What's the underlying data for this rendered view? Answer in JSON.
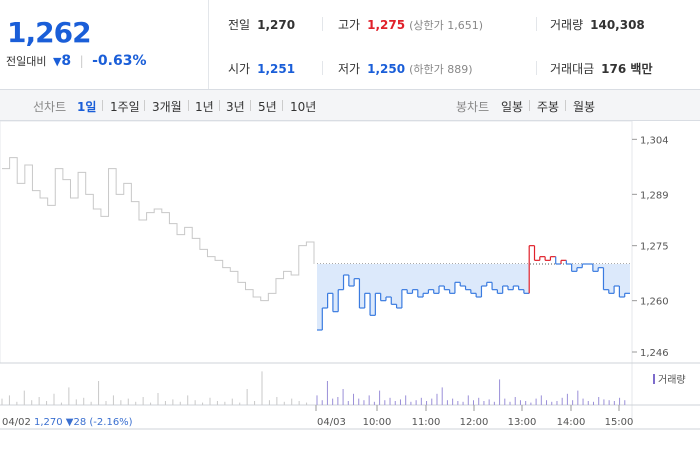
{
  "quote": {
    "price": "1,262",
    "change_label": "전일대비",
    "change_arrow": "▼",
    "change_value": "8",
    "change_pct": "-0.63%",
    "stats": {
      "prev_close": {
        "label": "전일",
        "value": "1,270"
      },
      "high": {
        "label": "고가",
        "value": "1,275",
        "sub": "(상한가 1,651)"
      },
      "volume": {
        "label": "거래량",
        "value": "140,308"
      },
      "open": {
        "label": "시가",
        "value": "1,251"
      },
      "low": {
        "label": "저가",
        "value": "1,250",
        "sub": "(하한가 889)"
      },
      "amount": {
        "label": "거래대금",
        "value": "176 백만"
      }
    }
  },
  "tabs": {
    "line_label": "선차트",
    "periods": [
      "1일",
      "1주일",
      "3개월",
      "1년",
      "3년",
      "5년",
      "10년"
    ],
    "selected_period": "1일",
    "candle_label": "봉차트",
    "candles": [
      "일봉",
      "주봉",
      "월봉"
    ]
  },
  "chart_data": {
    "type": "line",
    "y_ticks": [
      "1,304",
      "1,289",
      "1,275",
      "1,260",
      "1,246"
    ],
    "ylim": [
      1243,
      1309
    ],
    "prev_close": 1270,
    "x_ticks": [
      "04/03",
      "10:00",
      "11:00",
      "12:00",
      "13:00",
      "14:00",
      "15:00"
    ],
    "volume_legend": "거래량",
    "prev_day_label": "04/02",
    "prev_day_summary": "1,270 ▼28 (-2.16%)",
    "prev_day_series": [
      1296,
      1299,
      1292,
      1297,
      1290,
      1288,
      1286,
      1296,
      1293,
      1288,
      1295,
      1289,
      1285,
      1283,
      1296,
      1289,
      1292,
      1287,
      1282,
      1284,
      1285,
      1284,
      1281,
      1278,
      1280,
      1277,
      1274,
      1272,
      1271,
      1269,
      1268,
      1265,
      1263,
      1261,
      1260,
      1262,
      1266,
      1268,
      1267,
      1275,
      1276,
      1270
    ],
    "today_series": [
      1252,
      1258,
      1262,
      1257,
      1263,
      1267,
      1264,
      1266,
      1258,
      1262,
      1256,
      1262,
      1260,
      1261,
      1259,
      1258,
      1263,
      1262,
      1263,
      1261,
      1262,
      1263,
      1262,
      1264,
      1263,
      1262,
      1265,
      1264,
      1263,
      1262,
      1261,
      1264,
      1265,
      1263,
      1262,
      1264,
      1263,
      1264,
      1263,
      1262,
      1275,
      1271,
      1272,
      1271,
      1272,
      1270,
      1271,
      1270,
      1268,
      1269,
      1270,
      1270,
      1268,
      1269,
      1263,
      1262,
      1264,
      1261,
      1262,
      1262
    ],
    "volume_prev": [
      8,
      12,
      4,
      18,
      6,
      10,
      5,
      14,
      3,
      22,
      7,
      9,
      4,
      30,
      5,
      12,
      6,
      8,
      4,
      10,
      3,
      15,
      5,
      7,
      4,
      12,
      6,
      3,
      9,
      5,
      4,
      8,
      3,
      20,
      5,
      42,
      6,
      10,
      4,
      8,
      5,
      3
    ],
    "volume_today": [
      12,
      6,
      30,
      8,
      10,
      20,
      5,
      14,
      8,
      6,
      12,
      4,
      18,
      6,
      9,
      5,
      7,
      12,
      4,
      6,
      9,
      5,
      8,
      14,
      22,
      6,
      8,
      5,
      4,
      12,
      6,
      9,
      5,
      7,
      4,
      32,
      8,
      4,
      10,
      6,
      5,
      3,
      8,
      12,
      6,
      4,
      5,
      9,
      14,
      6,
      18,
      8,
      5,
      4,
      10,
      7,
      6,
      5,
      9,
      6
    ]
  }
}
